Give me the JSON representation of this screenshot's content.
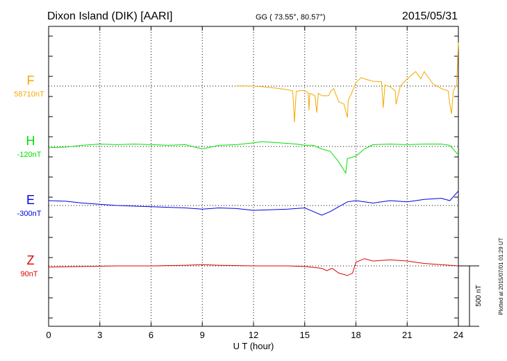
{
  "header": {
    "station": "Dixon Island (DIK)  [AARI]",
    "coords": "GG ( 73.55°,  80.57°)",
    "date": "2015/05/31"
  },
  "side_note": "Plotted at 2015/07/01 01:29 UT",
  "chart_data": {
    "type": "line",
    "xlabel": "U T (hour)",
    "xlim": [
      0,
      24
    ],
    "x_ticks": [
      "0",
      "3",
      "6",
      "9",
      "12",
      "15",
      "18",
      "21",
      "24"
    ],
    "scale_bar_label": "500 nT",
    "scale_bar_nT": 500,
    "grid": true,
    "series": [
      {
        "name": "F",
        "baseline_label": "58710nT",
        "color": "#f5a800",
        "points": [
          [
            11.0,
            1
          ],
          [
            11.5,
            2
          ],
          [
            12.0,
            0
          ],
          [
            12.5,
            -5
          ],
          [
            13.0,
            -12
          ],
          [
            13.5,
            -20
          ],
          [
            14.0,
            -30
          ],
          [
            14.3,
            -40
          ],
          [
            14.4,
            -300
          ],
          [
            14.5,
            -45
          ],
          [
            14.8,
            -35
          ],
          [
            15.0,
            -40
          ],
          [
            15.2,
            -55
          ],
          [
            15.25,
            -200
          ],
          [
            15.3,
            -60
          ],
          [
            15.6,
            -80
          ],
          [
            15.7,
            -220
          ],
          [
            15.8,
            -60
          ],
          [
            16.0,
            -80
          ],
          [
            16.4,
            -80
          ],
          [
            16.5,
            -50
          ],
          [
            16.7,
            -20
          ],
          [
            16.8,
            -60
          ],
          [
            17.0,
            -130
          ],
          [
            17.3,
            -150
          ],
          [
            17.5,
            -260
          ],
          [
            17.55,
            -120
          ],
          [
            17.8,
            -40
          ],
          [
            18.0,
            30
          ],
          [
            18.3,
            70
          ],
          [
            18.6,
            55
          ],
          [
            19.0,
            40
          ],
          [
            19.5,
            35
          ],
          [
            19.6,
            -180
          ],
          [
            19.7,
            10
          ],
          [
            20.0,
            -5
          ],
          [
            20.3,
            -40
          ],
          [
            20.35,
            -150
          ],
          [
            20.6,
            0
          ],
          [
            21.0,
            60
          ],
          [
            21.5,
            120
          ],
          [
            21.8,
            60
          ],
          [
            22.0,
            120
          ],
          [
            22.5,
            20
          ],
          [
            23.0,
            -20
          ],
          [
            23.4,
            -40
          ],
          [
            23.5,
            -150
          ],
          [
            23.6,
            -230
          ],
          [
            23.7,
            -40
          ],
          [
            23.9,
            10
          ],
          [
            24.0,
            360
          ]
        ]
      },
      {
        "name": "H",
        "baseline_label": "-120nT",
        "color": "#00e000",
        "points": [
          [
            0,
            -10
          ],
          [
            1,
            -5
          ],
          [
            2,
            10
          ],
          [
            3,
            20
          ],
          [
            4,
            15
          ],
          [
            5,
            20
          ],
          [
            6,
            15
          ],
          [
            7,
            10
          ],
          [
            8,
            15
          ],
          [
            9,
            -20
          ],
          [
            10,
            10
          ],
          [
            11,
            15
          ],
          [
            12,
            30
          ],
          [
            12.5,
            40
          ],
          [
            13.5,
            30
          ],
          [
            14.5,
            20
          ],
          [
            15,
            10
          ],
          [
            15.5,
            10
          ],
          [
            16,
            -20
          ],
          [
            16.5,
            -40
          ],
          [
            17,
            -130
          ],
          [
            17.4,
            -220
          ],
          [
            17.5,
            -100
          ],
          [
            18,
            -80
          ],
          [
            18.5,
            -20
          ],
          [
            19,
            15
          ],
          [
            20,
            20
          ],
          [
            21,
            15
          ],
          [
            22,
            20
          ],
          [
            23,
            20
          ],
          [
            23.5,
            10
          ],
          [
            24,
            -70
          ]
        ]
      },
      {
        "name": "E",
        "baseline_label": "-300nT",
        "color": "#0000e0",
        "points": [
          [
            0,
            40
          ],
          [
            1,
            35
          ],
          [
            2,
            20
          ],
          [
            3,
            10
          ],
          [
            4,
            0
          ],
          [
            5,
            -5
          ],
          [
            6,
            -10
          ],
          [
            7,
            -15
          ],
          [
            8,
            -20
          ],
          [
            9,
            -30
          ],
          [
            10,
            -20
          ],
          [
            11,
            -25
          ],
          [
            12,
            -40
          ],
          [
            13,
            -35
          ],
          [
            14,
            -30
          ],
          [
            15,
            -20
          ],
          [
            15.5,
            -50
          ],
          [
            16,
            -80
          ],
          [
            16.5,
            -50
          ],
          [
            17,
            -10
          ],
          [
            17.5,
            30
          ],
          [
            18,
            40
          ],
          [
            19,
            20
          ],
          [
            20,
            40
          ],
          [
            21,
            30
          ],
          [
            22,
            50
          ],
          [
            23,
            60
          ],
          [
            23.5,
            40
          ],
          [
            24,
            120
          ]
        ]
      },
      {
        "name": "Z",
        "baseline_label": "90nT",
        "color": "#e00000",
        "points": [
          [
            0,
            -10
          ],
          [
            2,
            -5
          ],
          [
            4,
            0
          ],
          [
            6,
            0
          ],
          [
            8,
            5
          ],
          [
            9,
            10
          ],
          [
            10,
            5
          ],
          [
            12,
            0
          ],
          [
            14,
            0
          ],
          [
            15,
            -5
          ],
          [
            16,
            -20
          ],
          [
            16.3,
            -40
          ],
          [
            16.6,
            -20
          ],
          [
            17,
            -60
          ],
          [
            17.5,
            -80
          ],
          [
            17.8,
            -60
          ],
          [
            18,
            30
          ],
          [
            18.5,
            60
          ],
          [
            19,
            40
          ],
          [
            20,
            50
          ],
          [
            21,
            40
          ],
          [
            22,
            20
          ],
          [
            23,
            10
          ],
          [
            23.5,
            5
          ],
          [
            24,
            0
          ]
        ]
      }
    ]
  }
}
